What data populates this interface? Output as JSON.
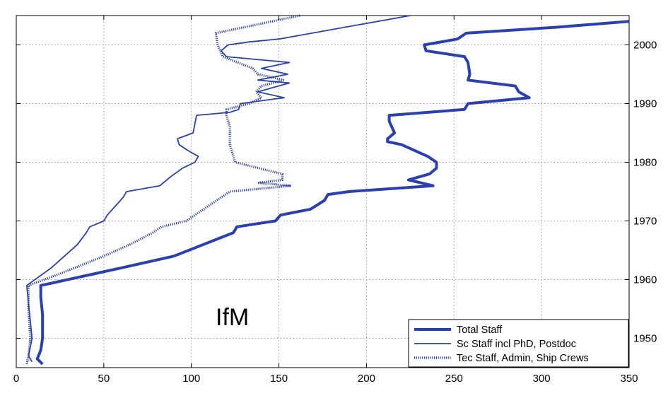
{
  "chart_data": {
    "type": "line",
    "title": "",
    "xlabel": "",
    "ylabel": "",
    "xlim": [
      0,
      350
    ],
    "ylim": [
      1945,
      2005
    ],
    "x_ticks": [
      0,
      50,
      100,
      150,
      200,
      250,
      300,
      350
    ],
    "y_ticks": [
      1950,
      1960,
      1970,
      1980,
      1990,
      2000
    ],
    "y_axis_side": "right",
    "grid": true,
    "legend_position": "bottom-right",
    "annotation": "IfM",
    "colors": {
      "series": "#2a3fb0",
      "grid": "#9a9a9a",
      "axis": "#000000"
    },
    "series": [
      {
        "name": "Total Staff",
        "style": "thick-solid",
        "points": [
          [
            15,
            1945.6
          ],
          [
            12,
            1946.5
          ],
          [
            14,
            1948
          ],
          [
            15,
            1950
          ],
          [
            15,
            1954
          ],
          [
            14,
            1957
          ],
          [
            14,
            1959
          ],
          [
            60,
            1962
          ],
          [
            90,
            1964
          ],
          [
            124,
            1968
          ],
          [
            126,
            1969
          ],
          [
            148,
            1970
          ],
          [
            151,
            1971
          ],
          [
            168,
            1972
          ],
          [
            176,
            1973.5
          ],
          [
            178,
            1974.5
          ],
          [
            190,
            1975
          ],
          [
            238,
            1976
          ],
          [
            224,
            1977
          ],
          [
            236,
            1978
          ],
          [
            240,
            1979
          ],
          [
            240,
            1980
          ],
          [
            235,
            1981
          ],
          [
            220,
            1983
          ],
          [
            212,
            1983.5
          ],
          [
            212,
            1984
          ],
          [
            216,
            1985
          ],
          [
            213,
            1987
          ],
          [
            213,
            1988
          ],
          [
            256,
            1989
          ],
          [
            258,
            1990
          ],
          [
            293,
            1991
          ],
          [
            287,
            1992
          ],
          [
            285,
            1993
          ],
          [
            258,
            1994
          ],
          [
            259,
            1995
          ],
          [
            258,
            1997
          ],
          [
            256,
            1998
          ],
          [
            234,
            1999
          ],
          [
            233,
            2000
          ],
          [
            252,
            2001
          ],
          [
            257,
            2002
          ],
          [
            308,
            2003
          ],
          [
            350,
            2004
          ]
        ]
      },
      {
        "name": "Sc Staff incl PhD, Postdoc",
        "style": "thin-solid",
        "points": [
          [
            9,
            1946
          ],
          [
            7,
            1947
          ],
          [
            9,
            1950
          ],
          [
            8,
            1953
          ],
          [
            7,
            1956
          ],
          [
            6,
            1959
          ],
          [
            20,
            1962
          ],
          [
            35,
            1966
          ],
          [
            40,
            1968
          ],
          [
            42,
            1969
          ],
          [
            50,
            1970
          ],
          [
            52,
            1971
          ],
          [
            58,
            1973
          ],
          [
            61,
            1974
          ],
          [
            63,
            1975
          ],
          [
            82,
            1976
          ],
          [
            88,
            1977.5
          ],
          [
            95,
            1979
          ],
          [
            102,
            1980
          ],
          [
            104,
            1981
          ],
          [
            98,
            1982
          ],
          [
            93,
            1983
          ],
          [
            92,
            1984
          ],
          [
            101,
            1985
          ],
          [
            103,
            1988
          ],
          [
            122,
            1988.5
          ],
          [
            127,
            1989
          ],
          [
            128,
            1990
          ],
          [
            153,
            1991
          ],
          [
            138,
            1992
          ],
          [
            156,
            1993.5
          ],
          [
            138,
            1994
          ],
          [
            155,
            1995
          ],
          [
            140,
            1996
          ],
          [
            156,
            1997
          ],
          [
            120,
            1998
          ],
          [
            117,
            1999
          ],
          [
            121,
            2000
          ],
          [
            133,
            2000.5
          ],
          [
            150,
            2001
          ],
          [
            225,
            2005
          ]
        ]
      },
      {
        "name": "Tec Staff, Admin, Ship Crews",
        "style": "thick-dotted",
        "points": [
          [
            6,
            1945.6
          ],
          [
            7,
            1947
          ],
          [
            8,
            1950
          ],
          [
            7,
            1955
          ],
          [
            7,
            1959
          ],
          [
            25,
            1961
          ],
          [
            50,
            1964
          ],
          [
            65,
            1966
          ],
          [
            78,
            1968
          ],
          [
            83,
            1969
          ],
          [
            97,
            1970
          ],
          [
            102,
            1971
          ],
          [
            117,
            1974
          ],
          [
            122,
            1975
          ],
          [
            157,
            1976
          ],
          [
            138,
            1976.5
          ],
          [
            152,
            1977
          ],
          [
            152,
            1978
          ],
          [
            125,
            1980
          ],
          [
            122,
            1983
          ],
          [
            122,
            1986
          ],
          [
            120,
            1988
          ],
          [
            120,
            1989
          ],
          [
            133,
            1990
          ],
          [
            140,
            1991
          ],
          [
            137,
            1992
          ],
          [
            140,
            1993
          ],
          [
            153,
            1994
          ],
          [
            138,
            1995
          ],
          [
            135,
            1996
          ],
          [
            118,
            1998
          ],
          [
            115,
            2000
          ],
          [
            114,
            2002
          ],
          [
            162,
            2005
          ]
        ]
      }
    ]
  }
}
